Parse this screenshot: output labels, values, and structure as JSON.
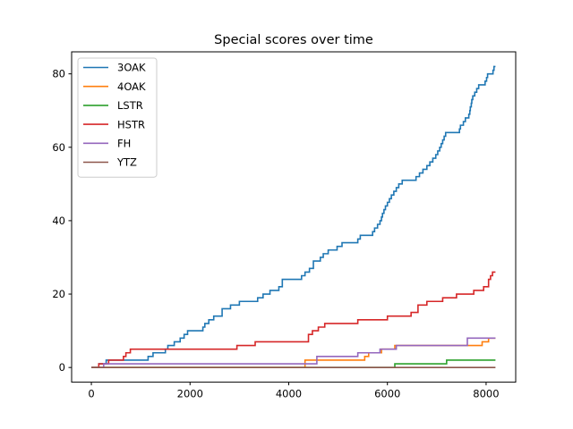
{
  "chart_data": {
    "type": "line",
    "title": "Special scores over time",
    "xlabel": "",
    "ylabel": "",
    "xlim": [
      -400,
      8600
    ],
    "ylim": [
      -4,
      86
    ],
    "xticks": [
      0,
      2000,
      4000,
      6000,
      8000
    ],
    "yticks": [
      0,
      20,
      40,
      60,
      80
    ],
    "grid": false,
    "legend": "upper left",
    "series": [
      {
        "name": "3OAK",
        "color": "#1f77b4",
        "points": [
          [
            0,
            0
          ],
          [
            150,
            0
          ],
          [
            150,
            1
          ],
          [
            300,
            1
          ],
          [
            300,
            2
          ],
          [
            700,
            2
          ],
          [
            700,
            2
          ],
          [
            1150,
            2
          ],
          [
            1150,
            3
          ],
          [
            1250,
            3
          ],
          [
            1250,
            4
          ],
          [
            1500,
            4
          ],
          [
            1500,
            5
          ],
          [
            1550,
            5
          ],
          [
            1550,
            6
          ],
          [
            1680,
            6
          ],
          [
            1680,
            7
          ],
          [
            1800,
            7
          ],
          [
            1800,
            8
          ],
          [
            1880,
            8
          ],
          [
            1880,
            9
          ],
          [
            1950,
            9
          ],
          [
            1950,
            10
          ],
          [
            2260,
            10
          ],
          [
            2260,
            11
          ],
          [
            2300,
            11
          ],
          [
            2300,
            12
          ],
          [
            2380,
            12
          ],
          [
            2380,
            13
          ],
          [
            2480,
            13
          ],
          [
            2480,
            14
          ],
          [
            2650,
            14
          ],
          [
            2650,
            16
          ],
          [
            2820,
            16
          ],
          [
            2820,
            17
          ],
          [
            3000,
            17
          ],
          [
            3000,
            18
          ],
          [
            3370,
            18
          ],
          [
            3370,
            19
          ],
          [
            3480,
            19
          ],
          [
            3480,
            20
          ],
          [
            3620,
            20
          ],
          [
            3620,
            21
          ],
          [
            3800,
            21
          ],
          [
            3800,
            22
          ],
          [
            3870,
            22
          ],
          [
            3870,
            24
          ],
          [
            4260,
            24
          ],
          [
            4260,
            25
          ],
          [
            4330,
            25
          ],
          [
            4330,
            26
          ],
          [
            4420,
            26
          ],
          [
            4420,
            27
          ],
          [
            4500,
            27
          ],
          [
            4500,
            29
          ],
          [
            4640,
            29
          ],
          [
            4640,
            30
          ],
          [
            4700,
            30
          ],
          [
            4700,
            31
          ],
          [
            4800,
            31
          ],
          [
            4800,
            32
          ],
          [
            4980,
            32
          ],
          [
            4980,
            33
          ],
          [
            5080,
            33
          ],
          [
            5080,
            34
          ],
          [
            5400,
            34
          ],
          [
            5400,
            35
          ],
          [
            5450,
            35
          ],
          [
            5450,
            36
          ],
          [
            5700,
            36
          ],
          [
            5700,
            37
          ],
          [
            5740,
            37
          ],
          [
            5740,
            38
          ],
          [
            5800,
            38
          ],
          [
            5800,
            39
          ],
          [
            5850,
            39
          ],
          [
            5850,
            40
          ],
          [
            5880,
            40
          ],
          [
            5880,
            41
          ],
          [
            5900,
            41
          ],
          [
            5900,
            42
          ],
          [
            5930,
            42
          ],
          [
            5930,
            43
          ],
          [
            5960,
            43
          ],
          [
            5960,
            44
          ],
          [
            6000,
            44
          ],
          [
            6000,
            45
          ],
          [
            6040,
            45
          ],
          [
            6040,
            46
          ],
          [
            6080,
            46
          ],
          [
            6080,
            47
          ],
          [
            6130,
            47
          ],
          [
            6130,
            48
          ],
          [
            6180,
            48
          ],
          [
            6180,
            49
          ],
          [
            6230,
            49
          ],
          [
            6230,
            50
          ],
          [
            6300,
            50
          ],
          [
            6300,
            51
          ],
          [
            6580,
            51
          ],
          [
            6580,
            52
          ],
          [
            6650,
            52
          ],
          [
            6650,
            53
          ],
          [
            6720,
            53
          ],
          [
            6720,
            54
          ],
          [
            6800,
            54
          ],
          [
            6800,
            55
          ],
          [
            6860,
            55
          ],
          [
            6860,
            56
          ],
          [
            6920,
            56
          ],
          [
            6920,
            57
          ],
          [
            6980,
            57
          ],
          [
            6980,
            58
          ],
          [
            7020,
            58
          ],
          [
            7020,
            59
          ],
          [
            7060,
            59
          ],
          [
            7060,
            60
          ],
          [
            7090,
            60
          ],
          [
            7090,
            61
          ],
          [
            7120,
            61
          ],
          [
            7120,
            62
          ],
          [
            7150,
            62
          ],
          [
            7150,
            63
          ],
          [
            7180,
            63
          ],
          [
            7180,
            64
          ],
          [
            7460,
            64
          ],
          [
            7460,
            65
          ],
          [
            7480,
            65
          ],
          [
            7480,
            66
          ],
          [
            7540,
            66
          ],
          [
            7540,
            67
          ],
          [
            7580,
            67
          ],
          [
            7580,
            68
          ],
          [
            7650,
            68
          ],
          [
            7650,
            69
          ],
          [
            7670,
            69
          ],
          [
            7670,
            70
          ],
          [
            7680,
            70
          ],
          [
            7680,
            71
          ],
          [
            7700,
            71
          ],
          [
            7700,
            72
          ],
          [
            7710,
            72
          ],
          [
            7710,
            73
          ],
          [
            7730,
            73
          ],
          [
            7730,
            74
          ],
          [
            7770,
            74
          ],
          [
            7770,
            75
          ],
          [
            7810,
            75
          ],
          [
            7810,
            76
          ],
          [
            7850,
            76
          ],
          [
            7850,
            77
          ],
          [
            7980,
            77
          ],
          [
            7980,
            78
          ],
          [
            8010,
            78
          ],
          [
            8010,
            79
          ],
          [
            8030,
            79
          ],
          [
            8030,
            80
          ],
          [
            8140,
            80
          ],
          [
            8140,
            81
          ],
          [
            8160,
            81
          ],
          [
            8160,
            82
          ],
          [
            8190,
            82
          ]
        ]
      },
      {
        "name": "4OAK",
        "color": "#ff7f0e",
        "points": [
          [
            0,
            0
          ],
          [
            4330,
            0
          ],
          [
            4330,
            2
          ],
          [
            5540,
            2
          ],
          [
            5540,
            3
          ],
          [
            5620,
            3
          ],
          [
            5620,
            4
          ],
          [
            5880,
            4
          ],
          [
            5880,
            5
          ],
          [
            6150,
            5
          ],
          [
            6150,
            6
          ],
          [
            7920,
            6
          ],
          [
            7920,
            7
          ],
          [
            8050,
            7
          ],
          [
            8050,
            8
          ],
          [
            8190,
            8
          ]
        ]
      },
      {
        "name": "LSTR",
        "color": "#2ca02c",
        "points": [
          [
            0,
            0
          ],
          [
            6150,
            0
          ],
          [
            6150,
            1
          ],
          [
            7200,
            1
          ],
          [
            7200,
            2
          ],
          [
            8190,
            2
          ]
        ]
      },
      {
        "name": "HSTR",
        "color": "#d62728",
        "points": [
          [
            0,
            0
          ],
          [
            150,
            0
          ],
          [
            150,
            1
          ],
          [
            350,
            1
          ],
          [
            350,
            2
          ],
          [
            650,
            2
          ],
          [
            650,
            3
          ],
          [
            700,
            3
          ],
          [
            700,
            4
          ],
          [
            790,
            4
          ],
          [
            790,
            5
          ],
          [
            2950,
            5
          ],
          [
            2950,
            6
          ],
          [
            3320,
            6
          ],
          [
            3320,
            7
          ],
          [
            4400,
            7
          ],
          [
            4400,
            9
          ],
          [
            4480,
            9
          ],
          [
            4480,
            10
          ],
          [
            4600,
            10
          ],
          [
            4600,
            11
          ],
          [
            4730,
            11
          ],
          [
            4730,
            12
          ],
          [
            5400,
            12
          ],
          [
            5400,
            13
          ],
          [
            6000,
            13
          ],
          [
            6000,
            14
          ],
          [
            6480,
            14
          ],
          [
            6480,
            15
          ],
          [
            6620,
            15
          ],
          [
            6620,
            17
          ],
          [
            6800,
            17
          ],
          [
            6800,
            18
          ],
          [
            7120,
            18
          ],
          [
            7120,
            19
          ],
          [
            7400,
            19
          ],
          [
            7400,
            20
          ],
          [
            7750,
            20
          ],
          [
            7750,
            21
          ],
          [
            7950,
            21
          ],
          [
            7950,
            22
          ],
          [
            8050,
            22
          ],
          [
            8050,
            24
          ],
          [
            8090,
            24
          ],
          [
            8090,
            25
          ],
          [
            8130,
            25
          ],
          [
            8130,
            26
          ],
          [
            8190,
            26
          ]
        ]
      },
      {
        "name": "FH",
        "color": "#9467bd",
        "points": [
          [
            0,
            0
          ],
          [
            250,
            0
          ],
          [
            250,
            1
          ],
          [
            4570,
            1
          ],
          [
            4570,
            3
          ],
          [
            5400,
            3
          ],
          [
            5400,
            4
          ],
          [
            5850,
            4
          ],
          [
            5850,
            5
          ],
          [
            6180,
            5
          ],
          [
            6180,
            6
          ],
          [
            7620,
            6
          ],
          [
            7620,
            8
          ],
          [
            8190,
            8
          ]
        ]
      },
      {
        "name": "YTZ",
        "color": "#8c564b",
        "points": [
          [
            0,
            0
          ],
          [
            8190,
            0
          ]
        ]
      }
    ]
  }
}
